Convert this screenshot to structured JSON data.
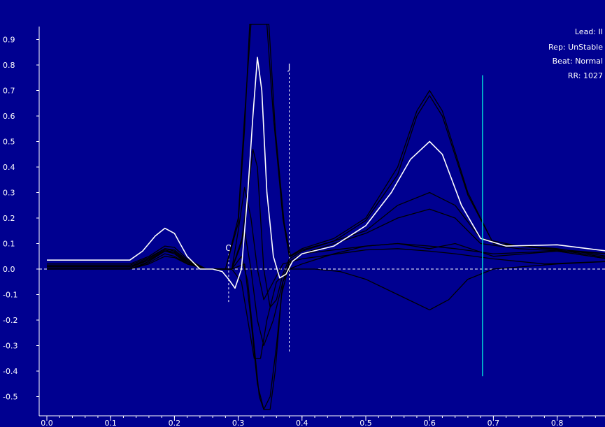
{
  "chart_data": {
    "type": "line",
    "x_ticks": [
      "0.0",
      "0.1",
      "0.2",
      "0.3",
      "0.4",
      "0.5",
      "0.6",
      "0.7",
      "0.8"
    ],
    "y_ticks": [
      "0.9",
      "0.8",
      "0.7",
      "0.6",
      "0.5",
      "0.4",
      "0.3",
      "0.2",
      "0.1",
      "0.0",
      "-0.1",
      "-0.2",
      "-0.3",
      "-0.4",
      "-0.5"
    ],
    "xlim": [
      0.0,
      0.88
    ],
    "ylim": [
      -0.55,
      0.95
    ],
    "info": {
      "lead": "Lead: II",
      "rep": "Rep: UnStable",
      "beat": "Beat: Normal",
      "rr": "RR: 1027"
    },
    "markers": [
      {
        "label": "Q",
        "x": 0.285,
        "y_top": 0.06,
        "y_bottom": -0.13
      },
      {
        "label": "J",
        "x": 0.38,
        "y_top": 0.77,
        "y_bottom": -0.33
      }
    ],
    "cursor": {
      "x": 0.683,
      "y_top": 0.76,
      "y_bottom": -0.42,
      "color": "#00d8d8"
    },
    "series": [
      {
        "color": "#ffffff",
        "points": [
          [
            0.0,
            0.035
          ],
          [
            0.13,
            0.035
          ],
          [
            0.15,
            0.07
          ],
          [
            0.17,
            0.13
          ],
          [
            0.185,
            0.16
          ],
          [
            0.2,
            0.14
          ],
          [
            0.22,
            0.05
          ],
          [
            0.24,
            0.0
          ],
          [
            0.26,
            0.0
          ],
          [
            0.275,
            -0.01
          ],
          [
            0.285,
            -0.04
          ],
          [
            0.295,
            -0.075
          ],
          [
            0.305,
            0.0
          ],
          [
            0.315,
            0.3
          ],
          [
            0.323,
            0.6
          ],
          [
            0.33,
            0.83
          ],
          [
            0.337,
            0.7
          ],
          [
            0.345,
            0.3
          ],
          [
            0.355,
            0.05
          ],
          [
            0.365,
            -0.035
          ],
          [
            0.375,
            -0.02
          ],
          [
            0.385,
            0.03
          ],
          [
            0.4,
            0.06
          ],
          [
            0.45,
            0.09
          ],
          [
            0.5,
            0.17
          ],
          [
            0.54,
            0.3
          ],
          [
            0.57,
            0.43
          ],
          [
            0.6,
            0.5
          ],
          [
            0.62,
            0.45
          ],
          [
            0.65,
            0.25
          ],
          [
            0.68,
            0.12
          ],
          [
            0.72,
            0.09
          ],
          [
            0.8,
            0.095
          ],
          [
            0.88,
            0.07
          ]
        ]
      },
      {
        "color": "#000000",
        "points": [
          [
            0.0,
            0.02
          ],
          [
            0.13,
            0.02
          ],
          [
            0.16,
            0.05
          ],
          [
            0.185,
            0.09
          ],
          [
            0.2,
            0.085
          ],
          [
            0.22,
            0.04
          ],
          [
            0.25,
            0.0
          ],
          [
            0.28,
            0.0
          ],
          [
            0.3,
            0.2
          ],
          [
            0.31,
            0.6
          ],
          [
            0.32,
            0.96
          ],
          [
            0.345,
            0.96
          ],
          [
            0.355,
            0.6
          ],
          [
            0.37,
            0.2
          ],
          [
            0.38,
            0.05
          ],
          [
            0.4,
            0.08
          ],
          [
            0.45,
            0.12
          ],
          [
            0.5,
            0.2
          ],
          [
            0.55,
            0.4
          ],
          [
            0.58,
            0.62
          ],
          [
            0.6,
            0.7
          ],
          [
            0.62,
            0.62
          ],
          [
            0.66,
            0.3
          ],
          [
            0.7,
            0.1
          ],
          [
            0.8,
            0.08
          ],
          [
            0.88,
            0.05
          ]
        ]
      },
      {
        "color": "#000000",
        "points": [
          [
            0.0,
            0.015
          ],
          [
            0.13,
            0.015
          ],
          [
            0.16,
            0.045
          ],
          [
            0.185,
            0.08
          ],
          [
            0.2,
            0.075
          ],
          [
            0.22,
            0.035
          ],
          [
            0.25,
            0.0
          ],
          [
            0.28,
            0.0
          ],
          [
            0.3,
            0.18
          ],
          [
            0.31,
            0.55
          ],
          [
            0.318,
            0.96
          ],
          [
            0.348,
            0.96
          ],
          [
            0.358,
            0.55
          ],
          [
            0.372,
            0.18
          ],
          [
            0.382,
            0.05
          ],
          [
            0.4,
            0.075
          ],
          [
            0.45,
            0.11
          ],
          [
            0.5,
            0.19
          ],
          [
            0.55,
            0.37
          ],
          [
            0.58,
            0.6
          ],
          [
            0.6,
            0.68
          ],
          [
            0.62,
            0.6
          ],
          [
            0.66,
            0.29
          ],
          [
            0.7,
            0.1
          ],
          [
            0.8,
            0.075
          ],
          [
            0.88,
            0.045
          ]
        ]
      },
      {
        "color": "#000000",
        "points": [
          [
            0.0,
            0.01
          ],
          [
            0.13,
            0.01
          ],
          [
            0.16,
            0.04
          ],
          [
            0.185,
            0.08
          ],
          [
            0.2,
            0.07
          ],
          [
            0.22,
            0.03
          ],
          [
            0.25,
            0.0
          ],
          [
            0.29,
            0.0
          ],
          [
            0.305,
            0.1
          ],
          [
            0.315,
            0.3
          ],
          [
            0.323,
            0.47
          ],
          [
            0.33,
            0.4
          ],
          [
            0.34,
            0.0
          ],
          [
            0.35,
            -0.15
          ],
          [
            0.36,
            -0.12
          ],
          [
            0.37,
            -0.02
          ],
          [
            0.38,
            0.04
          ],
          [
            0.4,
            0.07
          ],
          [
            0.5,
            0.15
          ],
          [
            0.55,
            0.25
          ],
          [
            0.6,
            0.3
          ],
          [
            0.64,
            0.25
          ],
          [
            0.68,
            0.12
          ],
          [
            0.74,
            0.09
          ],
          [
            0.88,
            0.06
          ]
        ]
      },
      {
        "color": "#000000",
        "points": [
          [
            0.0,
            0.005
          ],
          [
            0.13,
            0.005
          ],
          [
            0.16,
            0.035
          ],
          [
            0.185,
            0.075
          ],
          [
            0.2,
            0.065
          ],
          [
            0.22,
            0.025
          ],
          [
            0.25,
            0.0
          ],
          [
            0.29,
            0.0
          ],
          [
            0.31,
            0.15
          ],
          [
            0.32,
            0.0
          ],
          [
            0.33,
            -0.2
          ],
          [
            0.34,
            -0.3
          ],
          [
            0.355,
            -0.2
          ],
          [
            0.37,
            -0.05
          ],
          [
            0.38,
            0.03
          ],
          [
            0.4,
            0.06
          ],
          [
            0.5,
            0.14
          ],
          [
            0.55,
            0.2
          ],
          [
            0.6,
            0.235
          ],
          [
            0.64,
            0.2
          ],
          [
            0.68,
            0.1
          ],
          [
            0.74,
            0.08
          ],
          [
            0.88,
            0.06
          ]
        ]
      },
      {
        "color": "#000000",
        "points": [
          [
            0.0,
            0.0
          ],
          [
            0.13,
            0.0
          ],
          [
            0.16,
            0.03
          ],
          [
            0.185,
            0.07
          ],
          [
            0.2,
            0.06
          ],
          [
            0.22,
            0.02
          ],
          [
            0.25,
            0.0
          ],
          [
            0.29,
            0.0
          ],
          [
            0.305,
            0.05
          ],
          [
            0.315,
            -0.05
          ],
          [
            0.325,
            -0.3
          ],
          [
            0.333,
            -0.5
          ],
          [
            0.34,
            -0.55
          ],
          [
            0.35,
            -0.55
          ],
          [
            0.358,
            -0.4
          ],
          [
            0.368,
            -0.1
          ],
          [
            0.38,
            0.02
          ],
          [
            0.4,
            0.06
          ],
          [
            0.5,
            0.09
          ],
          [
            0.55,
            0.1
          ],
          [
            0.6,
            0.08
          ],
          [
            0.64,
            0.1
          ],
          [
            0.7,
            0.05
          ],
          [
            0.8,
            0.07
          ],
          [
            0.88,
            0.04
          ]
        ]
      },
      {
        "color": "#000000",
        "points": [
          [
            0.0,
            0.01
          ],
          [
            0.13,
            0.01
          ],
          [
            0.16,
            0.035
          ],
          [
            0.185,
            0.07
          ],
          [
            0.2,
            0.065
          ],
          [
            0.22,
            0.025
          ],
          [
            0.25,
            0.0
          ],
          [
            0.29,
            0.0
          ],
          [
            0.31,
            0.02
          ],
          [
            0.32,
            -0.2
          ],
          [
            0.33,
            -0.45
          ],
          [
            0.34,
            -0.55
          ],
          [
            0.35,
            -0.5
          ],
          [
            0.36,
            -0.3
          ],
          [
            0.37,
            -0.05
          ],
          [
            0.38,
            0.0
          ],
          [
            0.4,
            0.02
          ],
          [
            0.45,
            0.06
          ],
          [
            0.5,
            0.09
          ],
          [
            0.55,
            0.1
          ],
          [
            0.6,
            0.09
          ],
          [
            0.64,
            0.08
          ],
          [
            0.7,
            0.06
          ],
          [
            0.8,
            0.07
          ],
          [
            0.88,
            0.04
          ]
        ]
      },
      {
        "color": "#000000",
        "points": [
          [
            0.0,
            0.0
          ],
          [
            0.13,
            0.0
          ],
          [
            0.16,
            0.025
          ],
          [
            0.185,
            0.06
          ],
          [
            0.2,
            0.05
          ],
          [
            0.22,
            0.02
          ],
          [
            0.25,
            0.0
          ],
          [
            0.29,
            0.0
          ],
          [
            0.305,
            -0.05
          ],
          [
            0.315,
            -0.2
          ],
          [
            0.325,
            -0.35
          ],
          [
            0.335,
            -0.35
          ],
          [
            0.345,
            -0.2
          ],
          [
            0.36,
            -0.05
          ],
          [
            0.38,
            0.0
          ],
          [
            0.42,
            0.0
          ],
          [
            0.46,
            -0.01
          ],
          [
            0.5,
            -0.04
          ],
          [
            0.55,
            -0.1
          ],
          [
            0.6,
            -0.16
          ],
          [
            0.63,
            -0.12
          ],
          [
            0.66,
            -0.04
          ],
          [
            0.7,
            0.0
          ],
          [
            0.8,
            0.02
          ],
          [
            0.88,
            0.03
          ]
        ]
      },
      {
        "color": "#000000",
        "points": [
          [
            0.0,
            0.0
          ],
          [
            0.13,
            0.0
          ],
          [
            0.16,
            0.02
          ],
          [
            0.185,
            0.05
          ],
          [
            0.2,
            0.045
          ],
          [
            0.22,
            0.02
          ],
          [
            0.25,
            0.0
          ],
          [
            0.29,
            0.0
          ],
          [
            0.3,
            0.15
          ],
          [
            0.31,
            0.32
          ],
          [
            0.32,
            0.2
          ],
          [
            0.33,
            0.0
          ],
          [
            0.34,
            -0.12
          ],
          [
            0.355,
            -0.05
          ],
          [
            0.37,
            0.02
          ],
          [
            0.4,
            0.04
          ],
          [
            0.5,
            0.075
          ],
          [
            0.55,
            0.08
          ],
          [
            0.6,
            0.07
          ],
          [
            0.64,
            0.06
          ],
          [
            0.7,
            0.04
          ],
          [
            0.78,
            0.02
          ],
          [
            0.88,
            0.03
          ]
        ]
      }
    ]
  }
}
